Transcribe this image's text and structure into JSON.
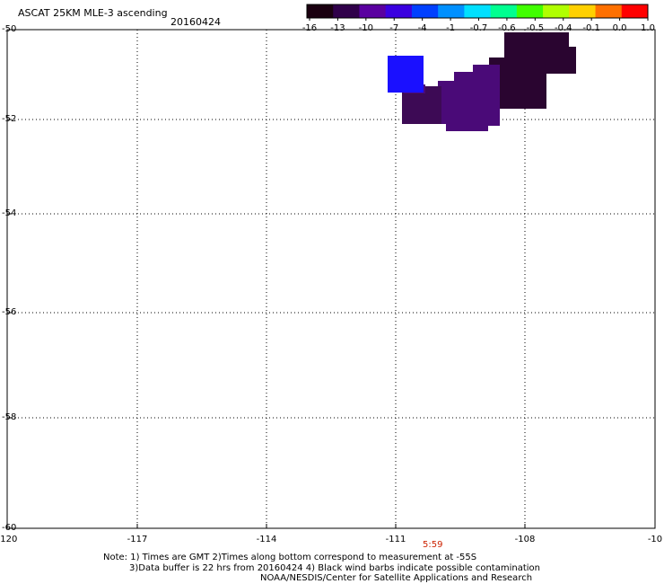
{
  "title": "ASCAT 25KM MLE-3 ascending",
  "date": "20160424",
  "colorbar": {
    "labels": [
      "-16",
      "-13",
      "-10",
      "-7",
      "-4",
      "-1",
      "-0.7",
      "-0.6",
      "-0.5",
      "-0.4",
      "-0.1",
      "0.0",
      "1.0"
    ],
    "colors": [
      "#1a0010",
      "#30004a",
      "#5a00a0",
      "#3a00e0",
      "#0040ff",
      "#0090ff",
      "#00e0ff",
      "#00ff90",
      "#40ff00",
      "#b0ff00",
      "#ffd000",
      "#ff7000",
      "#ff0000"
    ]
  },
  "axes": {
    "x_labels": [
      "-120",
      "-117",
      "-114",
      "-111",
      "-108",
      "-10"
    ],
    "y_labels": [
      "-50",
      "-52",
      "-54",
      "-56",
      "-58",
      "-60"
    ]
  },
  "time_label": "5:59",
  "notes": {
    "line1": "Note: 1) Times are GMT 2)Times along bottom correspond to measurement at -55S",
    "line2": "3)Data buffer is 22 hrs from 20160424 4) Black wind barbs indicate possible contamination",
    "line3": "NOAA/NESDIS/Center for Satellite Applications and Research"
  },
  "data_colors": {
    "dark": "#2a0530",
    "mid": "#3d0a55",
    "purple": "#4a0a78",
    "blue": "#1a10ff"
  }
}
